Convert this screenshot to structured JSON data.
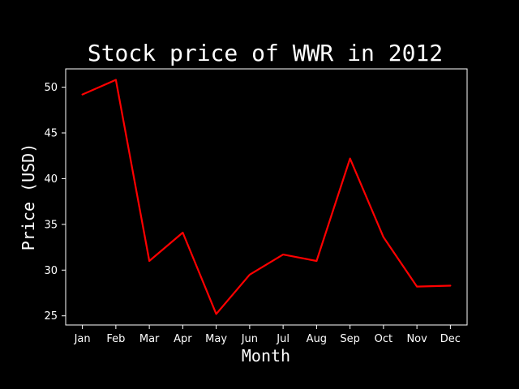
{
  "chart_data": {
    "type": "line",
    "title": "Stock price of WWR in 2012",
    "xlabel": "Month",
    "ylabel": "Price (USD)",
    "categories": [
      "Jan",
      "Feb",
      "Mar",
      "Apr",
      "May",
      "Jun",
      "Jul",
      "Aug",
      "Sep",
      "Oct",
      "Nov",
      "Dec"
    ],
    "series": [
      {
        "values": [
          49.2,
          50.8,
          31.0,
          34.1,
          25.2,
          29.5,
          31.7,
          31.0,
          42.2,
          33.6,
          28.2,
          28.3
        ],
        "color": "#ff0000"
      }
    ],
    "yticks": [
      25,
      30,
      35,
      40,
      45,
      50
    ],
    "ylim": [
      24.0,
      52.0
    ],
    "grid": false,
    "legend": "none",
    "background": "#000000",
    "foreground": "#ffffff"
  }
}
